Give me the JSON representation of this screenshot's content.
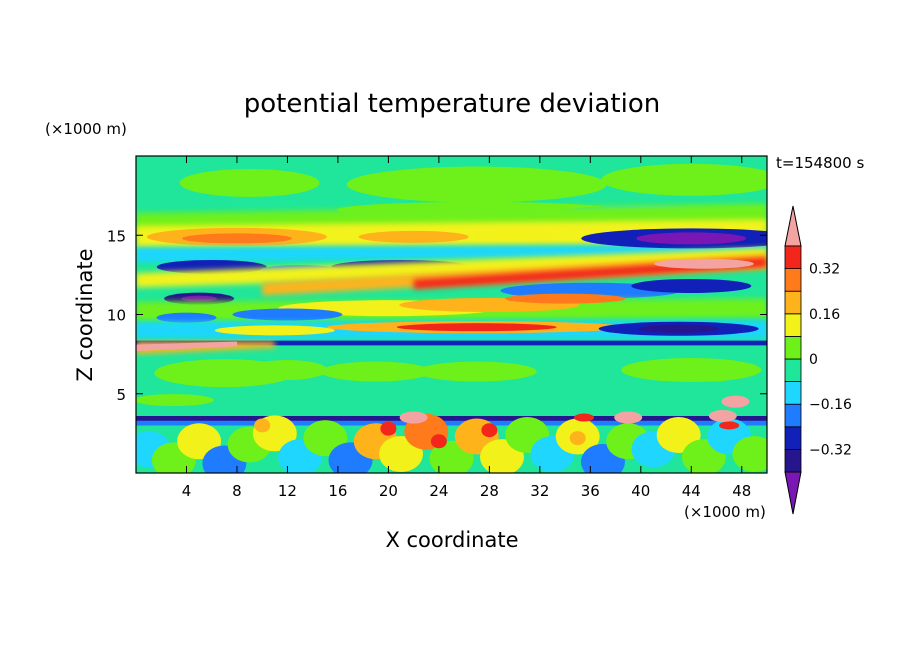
{
  "chart_data": {
    "type": "heatmap",
    "title": "potential temperature deviation",
    "xlabel": "X coordinate",
    "ylabel": "Z coordinate",
    "x_unit_label": "(×1000 m)",
    "y_unit_label": "(×1000 m)",
    "time_label": "t=154800 s",
    "xlim": [
      0,
      50
    ],
    "ylim": [
      0,
      20
    ],
    "x_ticks": [
      4,
      8,
      12,
      16,
      20,
      24,
      28,
      32,
      36,
      40,
      44,
      48
    ],
    "y_ticks": [
      5,
      10,
      15
    ],
    "colorbar": {
      "levels": [
        -0.48,
        -0.4,
        -0.32,
        -0.24,
        -0.16,
        -0.08,
        0,
        0.08,
        0.16,
        0.24,
        0.32,
        0.4,
        0.48
      ],
      "tick_values": [
        0.32,
        0.16,
        0,
        -0.16,
        -0.32
      ],
      "tick_labels": [
        "0.32",
        "0.16",
        "0",
        "−0.16",
        "−0.32"
      ],
      "colors_low_to_high": [
        "#7a16b4",
        "#26158c",
        "#1020b8",
        "#1f7cff",
        "#1fd6ff",
        "#1fe69a",
        "#6ef01a",
        "#f2f21a",
        "#ffb31a",
        "#ff7a1a",
        "#f2261a",
        "#f4a3a3"
      ]
    },
    "features": [
      {
        "name": "upper warm band",
        "x_range": [
          0,
          50
        ],
        "z_range": [
          13,
          15.5
        ],
        "sign": "positive"
      },
      {
        "name": "cold band",
        "x_range": [
          0,
          50
        ],
        "z_range": [
          11,
          14
        ],
        "sign": "negative"
      },
      {
        "name": "inversion layer",
        "x_range": [
          0,
          50
        ],
        "z_range": [
          7.6,
          8.3
        ],
        "sign": "mixed"
      },
      {
        "name": "near-uniform middle layer",
        "x_range": [
          0,
          50
        ],
        "z_range": [
          4,
          7.5
        ],
        "sign": "near zero"
      },
      {
        "name": "low-level cold line",
        "x_range": [
          0,
          50
        ],
        "z_range": [
          3.2,
          3.6
        ],
        "sign": "negative"
      },
      {
        "name": "boundary layer convection",
        "x_range": [
          0,
          50
        ],
        "z_range": [
          0,
          3.5
        ],
        "sign": "mixed"
      }
    ]
  }
}
